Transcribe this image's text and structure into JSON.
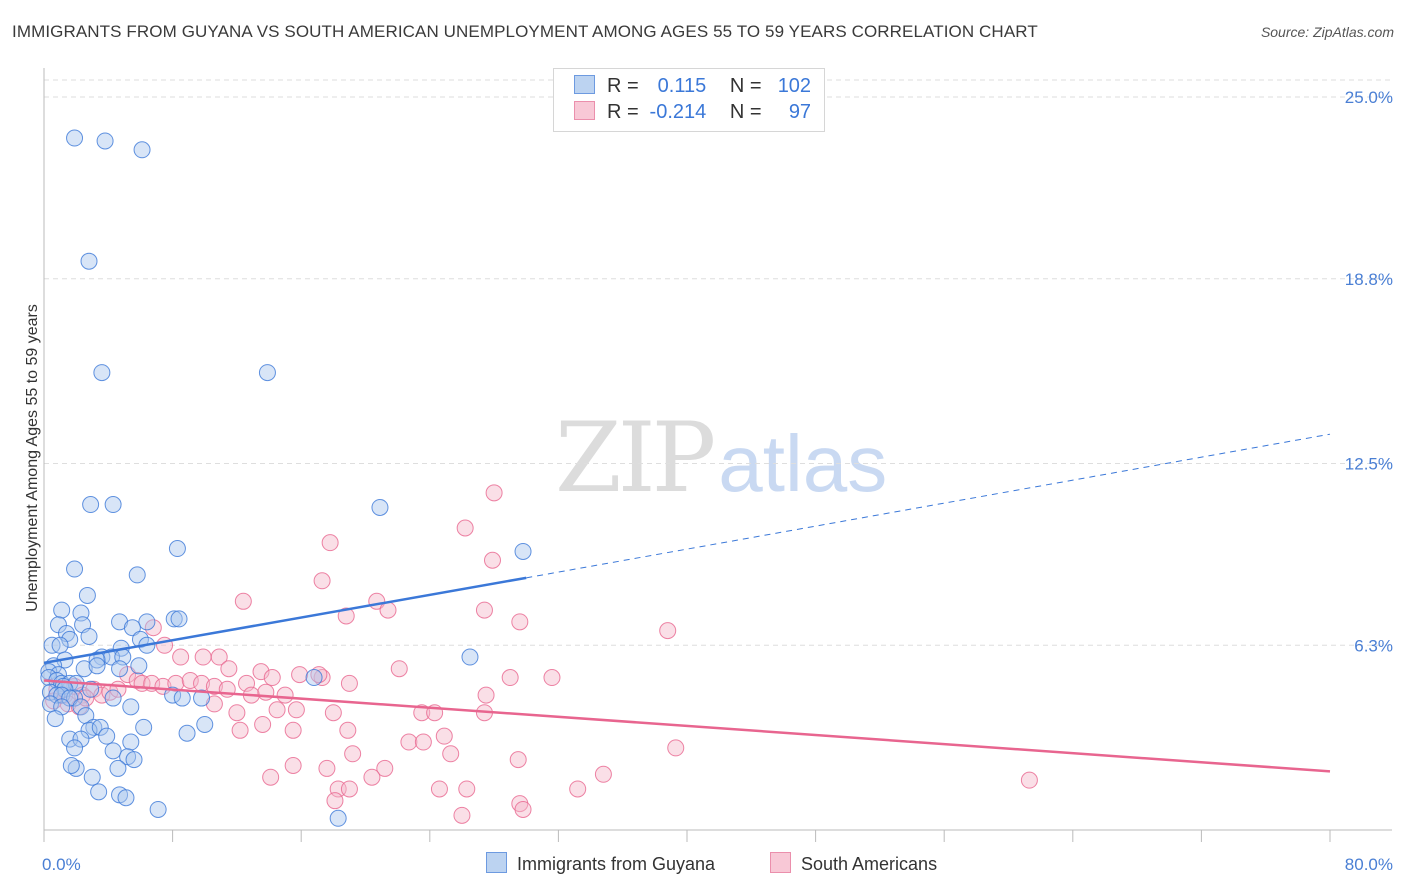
{
  "title": "IMMIGRANTS FROM GUYANA VS SOUTH AMERICAN UNEMPLOYMENT AMONG AGES 55 TO 59 YEARS CORRELATION CHART",
  "source": "Source: ZipAtlas.com",
  "watermark": {
    "zip": "ZIP",
    "atlas": "atlas"
  },
  "legend": {
    "r_label": "R =",
    "n_label": "N =",
    "series1": {
      "r": "0.115",
      "n": "102"
    },
    "series2": {
      "r": "-0.214",
      "n": "97"
    }
  },
  "colors": {
    "blue": "#3b78d8",
    "blue_fill": "#a8c6ee",
    "pink": "#e8658f",
    "pink_fill": "#f5b7ca",
    "grid": "#dedede"
  },
  "chart_data": {
    "type": "scatter",
    "title": "IMMIGRANTS FROM GUYANA VS SOUTH AMERICAN UNEMPLOYMENT AMONG AGES 55 TO 59 YEARS CORRELATION CHART",
    "xlabel": "",
    "ylabel": "Unemployment Among Ages 55 to 59 years",
    "xlim": [
      0,
      80
    ],
    "ylim": [
      0,
      25
    ],
    "x_tick_labels": [
      "0.0%",
      "80.0%"
    ],
    "y_ticks": [
      6.3,
      12.5,
      18.8,
      25.0
    ],
    "y_tick_labels": [
      "6.3%",
      "12.5%",
      "18.8%",
      "25.0%"
    ],
    "series": [
      {
        "name": "Immigrants from Guyana",
        "color": "#3b78d8",
        "trend": {
          "x0": 0,
          "y0": 5.7,
          "x1": 30,
          "y1": 8.6,
          "dash_to_x": 80,
          "dash_to_y": 13.5
        },
        "points": [
          [
            1.9,
            23.6
          ],
          [
            3.8,
            23.5
          ],
          [
            6.1,
            23.2
          ],
          [
            2.8,
            19.4
          ],
          [
            3.6,
            15.6
          ],
          [
            13.9,
            15.6
          ],
          [
            2.9,
            11.1
          ],
          [
            4.3,
            11.1
          ],
          [
            20.9,
            11.0
          ],
          [
            8.3,
            9.6
          ],
          [
            29.8,
            9.5
          ],
          [
            1.9,
            8.9
          ],
          [
            5.8,
            8.7
          ],
          [
            2.7,
            8.0
          ],
          [
            1.1,
            7.5
          ],
          [
            2.3,
            7.4
          ],
          [
            0.9,
            7.0
          ],
          [
            2.4,
            7.0
          ],
          [
            4.7,
            7.1
          ],
          [
            6.4,
            7.1
          ],
          [
            8.1,
            7.2
          ],
          [
            8.4,
            7.2
          ],
          [
            5.5,
            6.9
          ],
          [
            1.4,
            6.7
          ],
          [
            1.6,
            6.5
          ],
          [
            2.8,
            6.6
          ],
          [
            6.0,
            6.5
          ],
          [
            0.5,
            6.3
          ],
          [
            1.0,
            6.3
          ],
          [
            4.8,
            6.2
          ],
          [
            6.4,
            6.3
          ],
          [
            26.5,
            5.9
          ],
          [
            3.6,
            5.9
          ],
          [
            4.2,
            5.9
          ],
          [
            4.9,
            5.9
          ],
          [
            3.3,
            5.8
          ],
          [
            1.3,
            5.8
          ],
          [
            0.6,
            5.6
          ],
          [
            2.5,
            5.5
          ],
          [
            3.3,
            5.6
          ],
          [
            4.7,
            5.5
          ],
          [
            5.9,
            5.6
          ],
          [
            0.3,
            5.4
          ],
          [
            0.9,
            5.3
          ],
          [
            0.3,
            5.2
          ],
          [
            0.8,
            5.1
          ],
          [
            1.1,
            5.0
          ],
          [
            1.6,
            5.0
          ],
          [
            2.0,
            5.0
          ],
          [
            1.2,
            4.9
          ],
          [
            1.3,
            4.8
          ],
          [
            2.9,
            4.8
          ],
          [
            0.4,
            4.7
          ],
          [
            0.8,
            4.6
          ],
          [
            1.1,
            4.6
          ],
          [
            1.9,
            4.5
          ],
          [
            1.6,
            4.5
          ],
          [
            4.3,
            4.5
          ],
          [
            8.0,
            4.6
          ],
          [
            8.6,
            4.5
          ],
          [
            9.8,
            4.5
          ],
          [
            0.4,
            4.3
          ],
          [
            1.1,
            4.2
          ],
          [
            2.3,
            4.2
          ],
          [
            5.4,
            4.2
          ],
          [
            16.8,
            5.2
          ],
          [
            0.7,
            3.8
          ],
          [
            2.6,
            3.9
          ],
          [
            3.1,
            3.5
          ],
          [
            2.8,
            3.4
          ],
          [
            3.5,
            3.5
          ],
          [
            6.2,
            3.5
          ],
          [
            10.0,
            3.6
          ],
          [
            8.9,
            3.3
          ],
          [
            1.6,
            3.1
          ],
          [
            2.3,
            3.1
          ],
          [
            3.9,
            3.2
          ],
          [
            5.4,
            3.0
          ],
          [
            1.9,
            2.8
          ],
          [
            4.3,
            2.7
          ],
          [
            5.2,
            2.5
          ],
          [
            5.6,
            2.4
          ],
          [
            2.0,
            2.1
          ],
          [
            1.7,
            2.2
          ],
          [
            4.6,
            2.1
          ],
          [
            3.0,
            1.8
          ],
          [
            3.4,
            1.3
          ],
          [
            4.7,
            1.2
          ],
          [
            5.1,
            1.1
          ],
          [
            7.1,
            0.7
          ],
          [
            18.3,
            0.4
          ]
        ]
      },
      {
        "name": "South Americans",
        "color": "#e8658f",
        "trend": {
          "x0": 0,
          "y0": 5.1,
          "x1": 80,
          "y1": 2.0
        },
        "points": [
          [
            28.0,
            11.5
          ],
          [
            26.2,
            10.3
          ],
          [
            17.8,
            9.8
          ],
          [
            27.9,
            9.2
          ],
          [
            17.3,
            8.5
          ],
          [
            12.4,
            7.8
          ],
          [
            20.7,
            7.8
          ],
          [
            6.8,
            6.9
          ],
          [
            18.8,
            7.3
          ],
          [
            21.4,
            7.5
          ],
          [
            27.4,
            7.5
          ],
          [
            29.6,
            7.1
          ],
          [
            38.8,
            6.8
          ],
          [
            9.9,
            5.9
          ],
          [
            10.9,
            5.9
          ],
          [
            7.5,
            6.3
          ],
          [
            8.5,
            5.9
          ],
          [
            11.5,
            5.5
          ],
          [
            12.6,
            5.0
          ],
          [
            13.5,
            5.4
          ],
          [
            14.2,
            5.2
          ],
          [
            17.3,
            5.2
          ],
          [
            19.0,
            5.0
          ],
          [
            22.1,
            5.5
          ],
          [
            29.0,
            5.2
          ],
          [
            31.6,
            5.2
          ],
          [
            5.2,
            5.3
          ],
          [
            5.8,
            5.1
          ],
          [
            6.1,
            5.0
          ],
          [
            6.7,
            5.0
          ],
          [
            7.4,
            4.9
          ],
          [
            8.2,
            5.0
          ],
          [
            9.1,
            5.1
          ],
          [
            9.8,
            5.0
          ],
          [
            10.6,
            4.9
          ],
          [
            11.4,
            4.8
          ],
          [
            12.9,
            4.6
          ],
          [
            13.8,
            4.7
          ],
          [
            15.0,
            4.6
          ],
          [
            15.9,
            5.3
          ],
          [
            17.1,
            5.3
          ],
          [
            27.5,
            4.6
          ],
          [
            0.8,
            4.8
          ],
          [
            1.3,
            4.6
          ],
          [
            1.9,
            4.9
          ],
          [
            2.4,
            4.6
          ],
          [
            3.1,
            4.8
          ],
          [
            3.6,
            4.6
          ],
          [
            4.1,
            4.7
          ],
          [
            4.6,
            4.8
          ],
          [
            0.6,
            4.4
          ],
          [
            1.5,
            4.3
          ],
          [
            2.2,
            4.2
          ],
          [
            2.6,
            4.5
          ],
          [
            10.6,
            4.3
          ],
          [
            12.0,
            4.0
          ],
          [
            14.5,
            4.1
          ],
          [
            15.7,
            4.1
          ],
          [
            18.0,
            4.0
          ],
          [
            23.5,
            4.0
          ],
          [
            24.3,
            4.0
          ],
          [
            27.4,
            4.0
          ],
          [
            12.2,
            3.4
          ],
          [
            13.6,
            3.6
          ],
          [
            15.5,
            3.4
          ],
          [
            18.9,
            3.4
          ],
          [
            22.7,
            3.0
          ],
          [
            23.6,
            3.0
          ],
          [
            24.9,
            3.2
          ],
          [
            19.2,
            2.6
          ],
          [
            25.3,
            2.6
          ],
          [
            29.5,
            2.4
          ],
          [
            39.3,
            2.8
          ],
          [
            14.1,
            1.8
          ],
          [
            15.5,
            2.2
          ],
          [
            17.6,
            2.1
          ],
          [
            21.2,
            2.1
          ],
          [
            20.4,
            1.8
          ],
          [
            18.3,
            1.4
          ],
          [
            19.0,
            1.4
          ],
          [
            24.6,
            1.4
          ],
          [
            26.3,
            1.4
          ],
          [
            29.6,
            0.9
          ],
          [
            29.8,
            0.7
          ],
          [
            33.2,
            1.4
          ],
          [
            34.8,
            1.9
          ],
          [
            26.0,
            0.5
          ],
          [
            18.1,
            1.0
          ],
          [
            61.3,
            1.7
          ]
        ]
      }
    ]
  },
  "bottom_legend": {
    "item1": "Immigrants from Guyana",
    "item2": "South Americans"
  }
}
